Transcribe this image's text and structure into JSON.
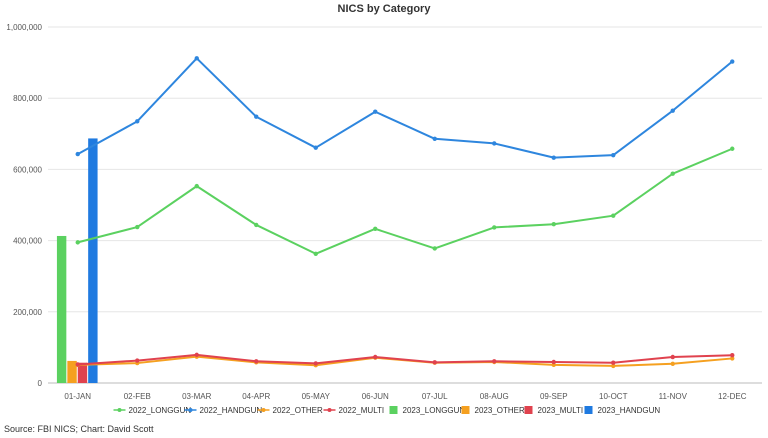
{
  "chart_data": {
    "type": "line",
    "title": "NICS by Category",
    "xlabel": "",
    "ylabel": "",
    "categories": [
      "01-JAN",
      "02-FEB",
      "03-MAR",
      "04-APR",
      "05-MAY",
      "06-JUN",
      "07-JUL",
      "08-AUG",
      "09-SEP",
      "10-OCT",
      "11-NOV",
      "12-DEC"
    ],
    "y_ticks": [
      "0",
      "200,000",
      "400,000",
      "600,000",
      "800,000",
      "1,000,000"
    ],
    "ylim": [
      0,
      1000000
    ],
    "grid": true,
    "legend_position": "bottom",
    "line_series": [
      {
        "name": "2022_LONGGUN",
        "color": "#5bd160",
        "values": [
          395000,
          438000,
          553000,
          444000,
          363000,
          433000,
          378000,
          437000,
          446000,
          470000,
          588000,
          658000
        ]
      },
      {
        "name": "2022_HANDGUN",
        "color": "#2e86de",
        "values": [
          643000,
          735000,
          912000,
          748000,
          661000,
          762000,
          686000,
          673000,
          633000,
          640000,
          765000,
          903000
        ]
      },
      {
        "name": "2022_OTHER",
        "color": "#f5a020",
        "values": [
          51000,
          56000,
          74000,
          58000,
          50000,
          71000,
          57000,
          59000,
          51000,
          48000,
          54000,
          69000
        ]
      },
      {
        "name": "2022_MULTI",
        "color": "#e0424e",
        "values": [
          52000,
          63000,
          79000,
          61000,
          55000,
          73000,
          58000,
          61000,
          59000,
          57000,
          73000,
          78000
        ]
      }
    ],
    "bar_series": [
      {
        "name": "2023_LONGGUN",
        "color": "#5bd160",
        "values": [
          413000
        ]
      },
      {
        "name": "2023_OTHER",
        "color": "#f5a020",
        "values": [
          62000
        ]
      },
      {
        "name": "2023_MULTI",
        "color": "#e0424e",
        "values": [
          57000
        ]
      },
      {
        "name": "2023_HANDGUN",
        "color": "#1f7ae0",
        "values": [
          687000
        ]
      }
    ],
    "legend": [
      {
        "name": "2022_LONGGUN",
        "kind": "line",
        "color": "#5bd160"
      },
      {
        "name": "2022_HANDGUN",
        "kind": "line",
        "color": "#2e86de"
      },
      {
        "name": "2022_OTHER",
        "kind": "line",
        "color": "#f5a020"
      },
      {
        "name": "2022_MULTI",
        "kind": "line",
        "color": "#e0424e"
      },
      {
        "name": "2023_LONGGUN",
        "kind": "bar",
        "color": "#5bd160"
      },
      {
        "name": "2023_OTHER",
        "kind": "bar",
        "color": "#f5a020"
      },
      {
        "name": "2023_MULTI",
        "kind": "bar",
        "color": "#e0424e"
      },
      {
        "name": "2023_HANDGUN",
        "kind": "bar",
        "color": "#1f7ae0"
      }
    ]
  },
  "footer": {
    "source": "Source: FBI NICS; Chart: David Scott"
  }
}
